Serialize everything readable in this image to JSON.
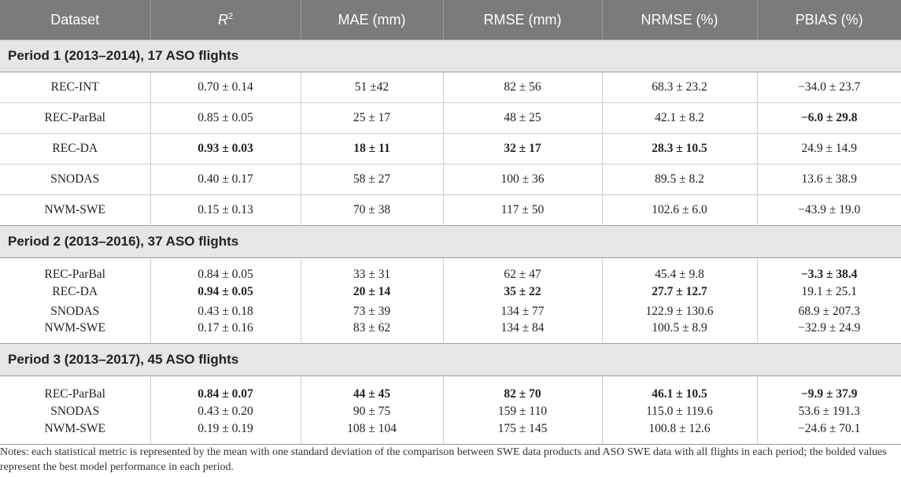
{
  "header": {
    "dataset": "Dataset",
    "r2_base": "R",
    "r2_sup": "2",
    "mae": "MAE (mm)",
    "rmse": "RMSE (mm)",
    "nrmse": "NRMSE (%)",
    "pbias": "PBIAS (%)"
  },
  "periods": [
    {
      "title": "Period 1 (2013–2014), 17 ASO flights",
      "rows": [
        {
          "dataset": "REC-INT",
          "r2": "0.70 ± 0.14",
          "mae": "51 ±42",
          "rmse": "82 ± 56",
          "nrmse": "68.3 ± 23.2",
          "pbias": "−34.0 ± 23.7"
        },
        {
          "dataset": "REC-ParBal",
          "r2": "0.85 ± 0.05",
          "mae": "25 ± 17",
          "rmse": "48 ± 25",
          "nrmse": "42.1 ± 8.2",
          "pbias": "−6.0 ± 29.8"
        },
        {
          "dataset": "REC-DA",
          "r2": "0.93 ± 0.03",
          "mae": "18 ± 11",
          "rmse": "32 ± 17",
          "nrmse": "28.3 ± 10.5",
          "pbias": "24.9 ± 14.9"
        },
        {
          "dataset": "SNODAS",
          "r2": "0.40 ± 0.17",
          "mae": "58 ± 27",
          "rmse": "100 ± 36",
          "nrmse": "89.5 ± 8.2",
          "pbias": "13.6 ± 38.9"
        },
        {
          "dataset": "NWM-SWE",
          "r2": "0.15 ± 0.13",
          "mae": "70 ± 38",
          "rmse": "117 ± 50",
          "nrmse": "102.6 ± 6.0",
          "pbias": "−43.9 ± 19.0"
        }
      ]
    },
    {
      "title": "Period 2 (2013–2016), 37 ASO flights",
      "rows": [
        {
          "dataset": "REC-ParBal",
          "r2": "0.84 ± 0.05",
          "mae": "33 ± 31",
          "rmse": "62 ± 47",
          "nrmse": "45.4 ± 9.8",
          "pbias": "−3.3 ± 38.4"
        },
        {
          "dataset": "REC-DA",
          "r2": "0.94 ± 0.05",
          "mae": "20 ± 14",
          "rmse": "35 ± 22",
          "nrmse": "27.7 ± 12.7",
          "pbias": "19.1 ± 25.1"
        },
        {
          "dataset": "SNODAS",
          "r2": "0.43 ± 0.18",
          "mae": "73 ± 39",
          "rmse": "134 ± 77",
          "nrmse": "122.9 ± 130.6",
          "pbias": "68.9 ± 207.3"
        },
        {
          "dataset": "NWM-SWE",
          "r2": "0.17 ± 0.16",
          "mae": "83 ± 62",
          "rmse": "134 ± 84",
          "nrmse": "100.5 ± 8.9",
          "pbias": "−32.9 ± 24.9"
        }
      ]
    },
    {
      "title": "Period 3 (2013–2017), 45 ASO flights",
      "rows": [
        {
          "dataset": "REC-ParBal",
          "r2": "0.84 ± 0.07",
          "mae": "44 ± 45",
          "rmse": "82 ± 70",
          "nrmse": "46.1 ± 10.5",
          "pbias": "−9.9 ± 37.9"
        },
        {
          "dataset": "SNODAS",
          "r2": "0.43 ± 0.20",
          "mae": "90 ± 75",
          "rmse": "159 ± 110",
          "nrmse": "115.0 ± 119.6",
          "pbias": "53.6 ± 191.3"
        },
        {
          "dataset": "NWM-SWE",
          "r2": "0.19 ± 0.19",
          "mae": "108 ± 104",
          "rmse": "175 ± 145",
          "nrmse": "100.8 ± 12.6",
          "pbias": "−24.6 ± 70.1"
        }
      ]
    }
  ],
  "notes": "Notes: each statistical metric is represented by the mean with one standard deviation of the comparison between SWE data products and ASO SWE data with all flights in each period; the bolded values represent the best model performance in each period."
}
